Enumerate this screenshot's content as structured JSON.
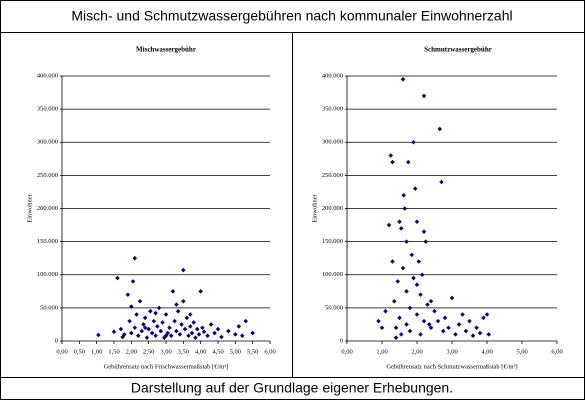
{
  "header": {
    "title": "Misch- und Schmutzwassergebühren nach kommunaler Einwohnerzahl"
  },
  "footer": {
    "text": "Darstellung auf der Grundlage eigener Erhebungen."
  },
  "chart_data": [
    {
      "type": "scatter",
      "title": "Mischwassergebühr",
      "xlabel": "Gebührensatz nach Frischwassermaßstab [€/m³]",
      "ylabel": "Einwohner",
      "color": "#000080",
      "grid": true,
      "xlim": [
        0,
        6
      ],
      "ylim": [
        0,
        400000
      ],
      "xticks": [
        {
          "value": 0,
          "label": "0,00"
        },
        {
          "value": 0.5,
          "label": "0,50"
        },
        {
          "value": 1,
          "label": "1,00"
        },
        {
          "value": 1.5,
          "label": "1,50"
        },
        {
          "value": 2,
          "label": "2,00"
        },
        {
          "value": 2.5,
          "label": "2,50"
        },
        {
          "value": 3,
          "label": "3,00"
        },
        {
          "value": 3.5,
          "label": "3,50"
        },
        {
          "value": 4,
          "label": "4,00"
        },
        {
          "value": 4.5,
          "label": "4,50"
        },
        {
          "value": 5,
          "label": "5,00"
        },
        {
          "value": 5.5,
          "label": "5,50"
        },
        {
          "value": 6,
          "label": "6,00"
        }
      ],
      "yticks": [
        0,
        {
          "value": 50000,
          "label": "50.000"
        },
        {
          "value": 100000,
          "label": "100.000"
        },
        {
          "value": 150000,
          "label": "150.000"
        },
        {
          "value": 200000,
          "label": "200.000"
        },
        {
          "value": 250000,
          "label": "250.000"
        },
        {
          "value": 300000,
          "label": "300.000"
        },
        {
          "value": 350000,
          "label": "350.000"
        },
        {
          "value": 400000,
          "label": "400.000"
        }
      ],
      "x": [
        1.05,
        1.5,
        1.6,
        1.7,
        1.8,
        1.9,
        1.95,
        2.0,
        2.05,
        2.1,
        2.1,
        2.15,
        2.2,
        2.25,
        2.3,
        2.35,
        2.4,
        2.45,
        2.5,
        2.55,
        2.6,
        2.65,
        2.7,
        2.75,
        2.8,
        2.85,
        2.9,
        2.95,
        3.0,
        3.05,
        3.1,
        3.15,
        3.2,
        3.25,
        3.3,
        3.35,
        3.4,
        3.45,
        3.5,
        3.5,
        3.55,
        3.6,
        3.65,
        3.7,
        3.75,
        3.8,
        3.85,
        3.9,
        3.95,
        4.0,
        4.05,
        4.1,
        4.2,
        4.3,
        4.4,
        4.5,
        4.6,
        4.8,
        5.0,
        5.1,
        5.2,
        5.3,
        5.5,
        2.0,
        2.4,
        3.0,
        3.3,
        2.7,
        1.75,
        3.7
      ],
      "y": [
        9000,
        14000,
        95000,
        18000,
        10000,
        70000,
        30000,
        52000,
        90000,
        125000,
        20000,
        40000,
        8000,
        60000,
        15000,
        25000,
        35000,
        5000,
        18000,
        45000,
        12000,
        30000,
        8000,
        22000,
        50000,
        15000,
        28000,
        5000,
        40000,
        12000,
        20000,
        8000,
        75000,
        30000,
        15000,
        45000,
        10000,
        25000,
        107000,
        60000,
        18000,
        35000,
        8000,
        22000,
        12000,
        28000,
        5000,
        18000,
        10000,
        75000,
        20000,
        14000,
        8000,
        25000,
        12000,
        18000,
        6000,
        15000,
        10000,
        22000,
        8000,
        30000,
        12000,
        12000,
        20000,
        8000,
        55000,
        42000,
        6000,
        40000
      ]
    },
    {
      "type": "scatter",
      "title": "Schmutzwassergebühr",
      "xlabel": "Gebührensatz nach Schmutzwassermaßstab [€/m³]",
      "ylabel": "Einwohner",
      "color": "#000080",
      "grid": true,
      "xlim": [
        0,
        6
      ],
      "ylim": [
        0,
        400000
      ],
      "xticks": [
        {
          "value": 0,
          "label": "0,00"
        },
        {
          "value": 1,
          "label": "1,00"
        },
        {
          "value": 2,
          "label": "2,00"
        },
        {
          "value": 3,
          "label": "3,00"
        },
        {
          "value": 4,
          "label": "4,00"
        },
        {
          "value": 5,
          "label": "5,00"
        },
        {
          "value": 6,
          "label": "6,00"
        }
      ],
      "yticks": [
        0,
        {
          "value": 50000,
          "label": "50.000"
        },
        {
          "value": 100000,
          "label": "100.000"
        },
        {
          "value": 150000,
          "label": "150.000"
        },
        {
          "value": 200000,
          "label": "200.000"
        },
        {
          "value": 250000,
          "label": "250.000"
        },
        {
          "value": 300000,
          "label": "300.000"
        },
        {
          "value": 350000,
          "label": "350.000"
        },
        {
          "value": 400000,
          "label": "400.000"
        }
      ],
      "x": [
        0.9,
        1.0,
        1.1,
        1.2,
        1.25,
        1.3,
        1.3,
        1.35,
        1.4,
        1.45,
        1.5,
        1.5,
        1.55,
        1.6,
        1.6,
        1.62,
        1.65,
        1.7,
        1.7,
        1.75,
        1.8,
        1.8,
        1.85,
        1.9,
        1.9,
        1.95,
        2.0,
        2.0,
        2.05,
        2.1,
        2.1,
        2.15,
        2.2,
        2.2,
        2.25,
        2.3,
        2.35,
        2.4,
        2.5,
        2.6,
        2.65,
        2.7,
        2.75,
        2.8,
        2.9,
        3.0,
        3.1,
        3.2,
        3.3,
        3.4,
        3.5,
        3.6,
        3.7,
        3.8,
        3.9,
        4.0,
        4.05,
        1.4,
        1.7,
        2.0,
        2.4,
        1.55,
        2.2
      ],
      "y": [
        30000,
        20000,
        45000,
        175000,
        280000,
        270000,
        120000,
        60000,
        20000,
        90000,
        180000,
        35000,
        170000,
        395000,
        110000,
        220000,
        200000,
        150000,
        75000,
        270000,
        50000,
        15000,
        130000,
        300000,
        95000,
        230000,
        180000,
        40000,
        120000,
        10000,
        70000,
        100000,
        370000,
        165000,
        150000,
        55000,
        25000,
        20000,
        45000,
        30000,
        320000,
        240000,
        15000,
        35000,
        20000,
        65000,
        10000,
        25000,
        40000,
        15000,
        30000,
        8000,
        20000,
        12000,
        35000,
        40000,
        10000,
        5000,
        25000,
        85000,
        60000,
        10000,
        30000
      ]
    }
  ]
}
